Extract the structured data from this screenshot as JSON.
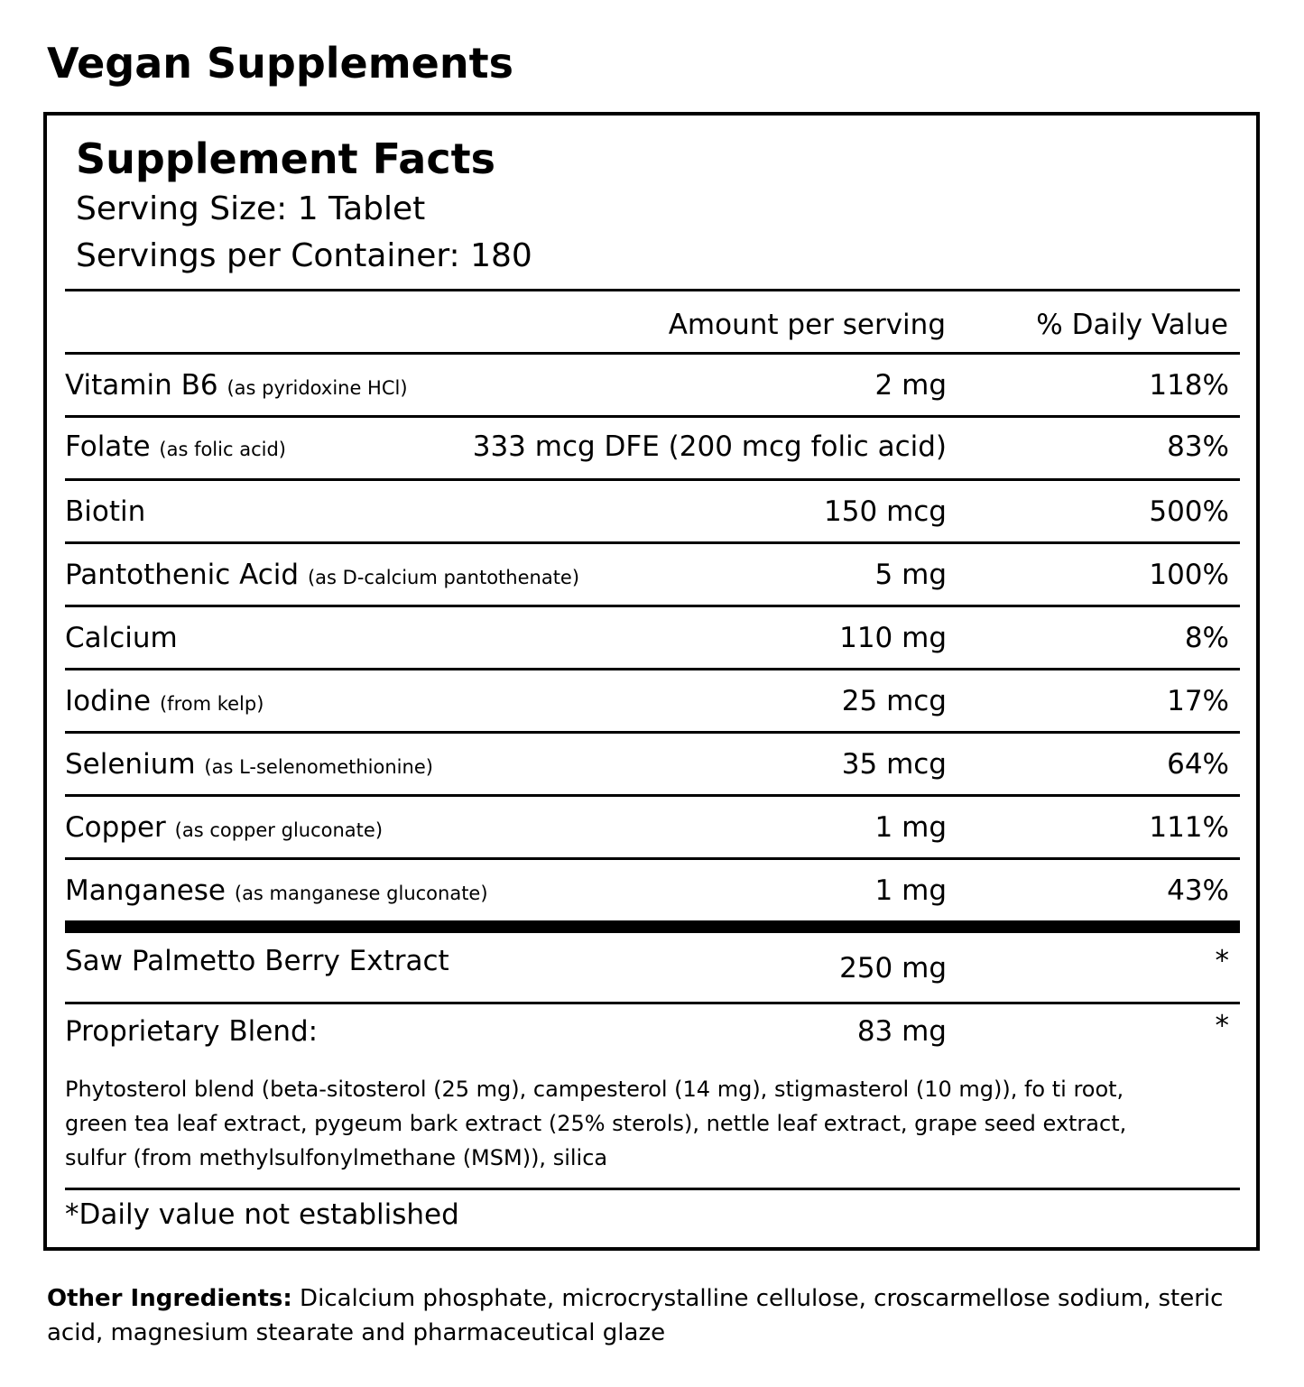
{
  "heading": "Vegan Supplements",
  "facts": {
    "title": "Supplement Facts",
    "serving_size": "Serving Size: 1 Tablet",
    "servings_per_container": "Servings per Container: 180",
    "header_amount": "Amount per serving",
    "header_dv": "% Daily Value",
    "rows": [
      {
        "name": "Vitamin B6",
        "form": "(as pyridoxine HCl)",
        "amount": "2 mg",
        "dv": "118%"
      },
      {
        "name": "Folate",
        "form": "(as folic acid)",
        "amount": "333 mcg DFE (200 mcg folic acid)",
        "dv": "83%"
      },
      {
        "name": "Biotin",
        "form": "",
        "amount": "150 mcg",
        "dv": "500%"
      },
      {
        "name": "Pantothenic Acid",
        "form": "(as D-calcium pantothenate)",
        "amount": "5 mg",
        "dv": "100%"
      },
      {
        "name": "Calcium",
        "form": "",
        "amount": "110 mg",
        "dv": "8%"
      },
      {
        "name": "Iodine",
        "form": "(from kelp)",
        "amount": "25 mcg",
        "dv": "17%"
      },
      {
        "name": "Selenium",
        "form": "(as L-selenomethionine)",
        "amount": "35 mcg",
        "dv": "64%"
      },
      {
        "name": "Copper",
        "form": "(as copper gluconate)",
        "amount": "1 mg",
        "dv": "111%"
      },
      {
        "name": "Manganese",
        "form": "(as manganese gluconate)",
        "amount": "1 mg",
        "dv": "43%"
      }
    ],
    "extra_rows": [
      {
        "name": "Saw Palmetto Berry Extract",
        "amount": "250 mg",
        "dv": "*"
      },
      {
        "name": "Proprietary Blend:",
        "amount": "83 mg",
        "dv": "*"
      }
    ],
    "blend_ingredients": "Phytosterol blend (beta-sitosterol (25 mg), campesterol (14 mg), stigmasterol (10 mg)), fo ti root, green tea leaf extract, pygeum bark extract (25% sterols), nettle leaf extract, grape seed extract, sulfur (from methylsulfonylmethane (MSM)), silica",
    "footnote": "*Daily value not established"
  },
  "other_ingredients": {
    "label": "Other Ingredients:",
    "text": "Dicalcium phosphate, microcrystalline cellulose, croscarmellose sodium, steric acid, magnesium stearate and pharmaceutical glaze"
  }
}
